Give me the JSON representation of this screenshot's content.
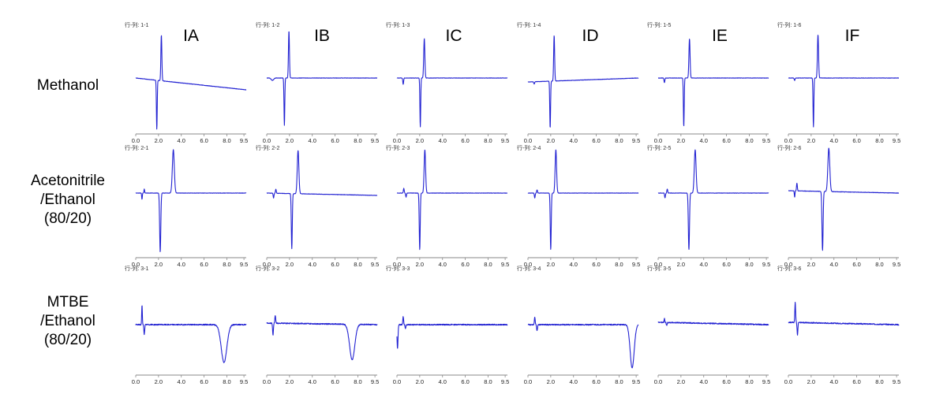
{
  "column_headers": [
    "IA",
    "IB",
    "IC",
    "ID",
    "IE",
    "IF"
  ],
  "row_labels": [
    [
      "Methanol"
    ],
    [
      "Acetonitrile",
      "/Ethanol",
      "(80/20)"
    ],
    [
      "MTBE",
      "/Ethanol",
      "(80/20)"
    ]
  ],
  "chart_data": {
    "type": "line",
    "layout": "grid 3 rows x 6 columns of chromatogram panels",
    "x_ticks": [
      "0.0",
      "2.0",
      "4.0",
      "6.0",
      "8.0",
      "9.5"
    ],
    "xlim": [
      0,
      9.7
    ],
    "line_color": "#2323d2",
    "grid": false,
    "panels": [
      [
        {
          "label": "行-列: 1-1",
          "y": [
            0,
            -15
          ],
          "features": [
            {
              "t": 1.85,
              "h": -62,
              "w": 0.05
            },
            {
              "t": 2.25,
              "h": 58,
              "w": 0.06
            }
          ]
        },
        {
          "label": "行-列: 1-2",
          "y": [
            0,
            0
          ],
          "features": [
            {
              "t": 0.5,
              "h": -3,
              "w": 0.15
            },
            {
              "t": 1.55,
              "h": -60,
              "w": 0.05
            },
            {
              "t": 1.95,
              "h": 60,
              "w": 0.06
            }
          ]
        },
        {
          "label": "行-列: 1-3",
          "y": [
            0,
            0
          ],
          "features": [
            {
              "t": 0.55,
              "h": -8,
              "w": 0.05
            },
            {
              "t": 2.05,
              "h": -62,
              "w": 0.05
            },
            {
              "t": 2.4,
              "h": 50,
              "w": 0.07
            }
          ]
        },
        {
          "label": "行-列: 1-4",
          "y": [
            -5,
            0
          ],
          "features": [
            {
              "t": 0.55,
              "h": -3,
              "w": 0.05
            },
            {
              "t": 1.95,
              "h": -60,
              "w": 0.05
            },
            {
              "t": 2.3,
              "h": 58,
              "w": 0.06
            }
          ]
        },
        {
          "label": "行-列: 1-5",
          "y": [
            0,
            0
          ],
          "features": [
            {
              "t": 0.55,
              "h": -6,
              "w": 0.05
            },
            {
              "t": 2.25,
              "h": -62,
              "w": 0.05
            },
            {
              "t": 2.75,
              "h": 50,
              "w": 0.07
            }
          ]
        },
        {
          "label": "行-列: 1-6",
          "y": [
            0,
            0
          ],
          "features": [
            {
              "t": 0.55,
              "h": -3,
              "w": 0.05
            },
            {
              "t": 2.2,
              "h": -62,
              "w": 0.05
            },
            {
              "t": 2.6,
              "h": 55,
              "w": 0.07
            }
          ]
        }
      ],
      [
        {
          "label": "行-列: 2-1",
          "y": [
            0,
            0
          ],
          "features": [
            {
              "t": 0.55,
              "h": -8,
              "w": 0.04
            },
            {
              "t": 0.75,
              "h": 5,
              "w": 0.04
            },
            {
              "t": 2.15,
              "h": -75,
              "w": 0.07
            },
            {
              "t": 3.3,
              "h": 55,
              "w": 0.12
            }
          ]
        },
        {
          "label": "行-列: 2-2",
          "y": [
            0,
            -3
          ],
          "features": [
            {
              "t": 0.6,
              "h": -6,
              "w": 0.05
            },
            {
              "t": 0.8,
              "h": 5,
              "w": 0.05
            },
            {
              "t": 2.2,
              "h": -70,
              "w": 0.06
            },
            {
              "t": 2.75,
              "h": 55,
              "w": 0.1
            }
          ]
        },
        {
          "label": "行-列: 2-3",
          "y": [
            0,
            0
          ],
          "features": [
            {
              "t": 0.6,
              "h": 6,
              "w": 0.05
            },
            {
              "t": 0.8,
              "h": -5,
              "w": 0.05
            },
            {
              "t": 2.0,
              "h": -72,
              "w": 0.06
            },
            {
              "t": 2.45,
              "h": 55,
              "w": 0.09
            }
          ]
        },
        {
          "label": "行-列: 2-4",
          "y": [
            0,
            0
          ],
          "features": [
            {
              "t": 0.6,
              "h": -6,
              "w": 0.05
            },
            {
              "t": 0.8,
              "h": 4,
              "w": 0.05
            },
            {
              "t": 2.0,
              "h": -72,
              "w": 0.06
            },
            {
              "t": 2.45,
              "h": 55,
              "w": 0.09
            }
          ]
        },
        {
          "label": "行-列: 2-5",
          "y": [
            0,
            0
          ],
          "features": [
            {
              "t": 0.6,
              "h": -6,
              "w": 0.05
            },
            {
              "t": 0.8,
              "h": 5,
              "w": 0.05
            },
            {
              "t": 2.7,
              "h": -72,
              "w": 0.07
            },
            {
              "t": 3.25,
              "h": 55,
              "w": 0.11
            }
          ]
        },
        {
          "label": "行-列: 2-6",
          "y": [
            3,
            0
          ],
          "features": [
            {
              "t": 0.55,
              "h": -8,
              "w": 0.04
            },
            {
              "t": 0.75,
              "h": 10,
              "w": 0.05
            },
            {
              "t": 3.0,
              "h": -75,
              "w": 0.07
            },
            {
              "t": 3.55,
              "h": 55,
              "w": 0.12
            }
          ]
        }
      ],
      [
        {
          "label": "行-列: 3-1",
          "y": [
            0,
            0
          ],
          "features": [
            {
              "t": 0.55,
              "h": 25,
              "w": 0.04
            },
            {
              "t": 0.75,
              "h": -12,
              "w": 0.05
            },
            {
              "t": 7.75,
              "h": -48,
              "w": 0.35
            }
          ]
        },
        {
          "label": "行-列: 3-2",
          "y": [
            2,
            0
          ],
          "features": [
            {
              "t": 0.55,
              "h": -15,
              "w": 0.05
            },
            {
              "t": 0.75,
              "h": 10,
              "w": 0.05
            },
            {
              "t": 7.5,
              "h": -45,
              "w": 0.32
            }
          ]
        },
        {
          "label": "行-列: 3-3",
          "y": [
            0,
            0
          ],
          "features": [
            {
              "t": 0.05,
              "h": -30,
              "w": 0.06
            },
            {
              "t": 0.55,
              "h": 10,
              "w": 0.05
            },
            {
              "t": 0.75,
              "h": -5,
              "w": 0.05
            }
          ]
        },
        {
          "label": "行-列: 3-4",
          "y": [
            0,
            0
          ],
          "features": [
            {
              "t": 0.6,
              "h": 10,
              "w": 0.05
            },
            {
              "t": 0.8,
              "h": -8,
              "w": 0.05
            },
            {
              "t": 9.15,
              "h": -55,
              "w": 0.25
            }
          ]
        },
        {
          "label": "行-列: 3-5",
          "y": [
            3,
            0
          ],
          "features": [
            {
              "t": 0.55,
              "h": 5,
              "w": 0.04
            },
            {
              "t": 0.75,
              "h": -4,
              "w": 0.05
            }
          ]
        },
        {
          "label": "行-列: 3-6",
          "y": [
            3,
            0
          ],
          "features": [
            {
              "t": 0.6,
              "h": 25,
              "w": 0.05
            },
            {
              "t": 0.8,
              "h": -16,
              "w": 0.05
            }
          ]
        }
      ]
    ]
  }
}
